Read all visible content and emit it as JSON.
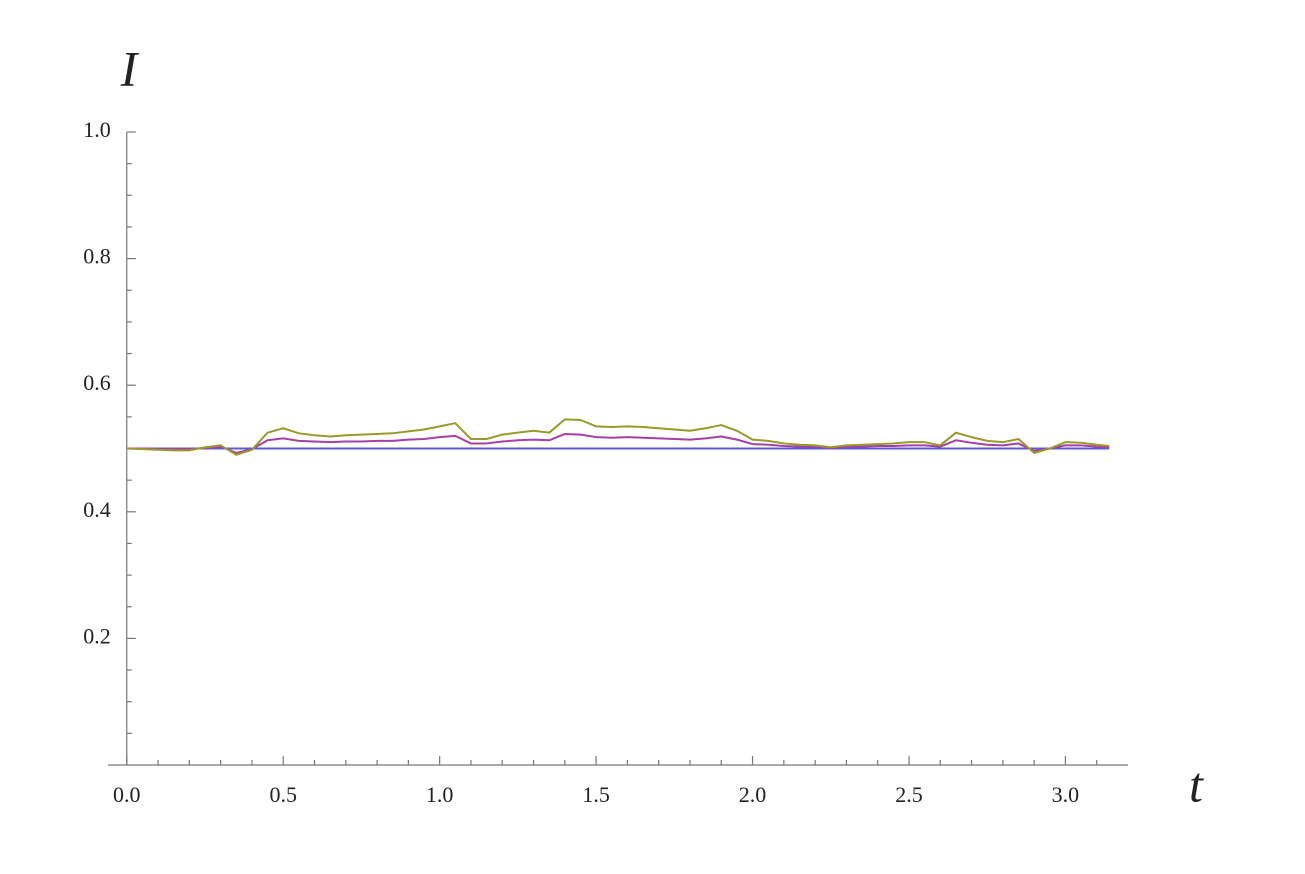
{
  "chart_data": {
    "type": "line",
    "xlabel": "t",
    "ylabel": "I",
    "x": [
      0,
      0.05,
      0.1,
      0.15,
      0.2,
      0.25,
      0.3,
      0.35,
      0.4,
      0.45,
      0.5,
      0.55,
      0.6,
      0.65,
      0.7,
      0.75,
      0.8,
      0.85,
      0.9,
      0.95,
      1.0,
      1.05,
      1.1,
      1.15,
      1.2,
      1.25,
      1.3,
      1.35,
      1.4,
      1.45,
      1.5,
      1.55,
      1.6,
      1.65,
      1.7,
      1.75,
      1.8,
      1.85,
      1.9,
      1.95,
      2.0,
      2.05,
      2.1,
      2.15,
      2.2,
      2.25,
      2.3,
      2.35,
      2.4,
      2.45,
      2.5,
      2.55,
      2.6,
      2.65,
      2.7,
      2.75,
      2.8,
      2.85,
      2.9,
      2.95,
      3.0,
      3.05,
      3.1,
      3.14
    ],
    "series": [
      {
        "color": "#5b5bd6",
        "values": [
          0.5,
          0.5,
          0.5,
          0.5,
          0.5,
          0.5,
          0.5,
          0.5,
          0.5,
          0.5,
          0.5,
          0.5,
          0.5,
          0.5,
          0.5,
          0.5,
          0.5,
          0.5,
          0.5,
          0.5,
          0.5,
          0.5,
          0.5,
          0.5,
          0.5,
          0.5,
          0.5,
          0.5,
          0.5,
          0.5,
          0.5,
          0.5,
          0.5,
          0.5,
          0.5,
          0.5,
          0.5,
          0.5,
          0.5,
          0.5,
          0.5,
          0.5,
          0.5,
          0.5,
          0.5,
          0.5,
          0.5,
          0.5,
          0.5,
          0.5,
          0.5,
          0.5,
          0.5,
          0.5,
          0.5,
          0.5,
          0.5,
          0.5,
          0.5,
          0.5,
          0.5,
          0.5,
          0.5,
          0.5
        ]
      },
      {
        "color": "#a83ea8",
        "values": [
          0.5,
          0.5,
          0.499,
          0.499,
          0.499,
          0.501,
          0.503,
          0.493,
          0.499,
          0.513,
          0.516,
          0.512,
          0.511,
          0.51,
          0.511,
          0.511,
          0.512,
          0.512,
          0.514,
          0.515,
          0.518,
          0.52,
          0.508,
          0.508,
          0.511,
          0.513,
          0.514,
          0.513,
          0.523,
          0.522,
          0.518,
          0.517,
          0.518,
          0.517,
          0.516,
          0.515,
          0.514,
          0.516,
          0.519,
          0.514,
          0.507,
          0.506,
          0.504,
          0.503,
          0.503,
          0.501,
          0.503,
          0.503,
          0.504,
          0.504,
          0.505,
          0.505,
          0.503,
          0.513,
          0.509,
          0.506,
          0.505,
          0.508,
          0.496,
          0.5,
          0.505,
          0.505,
          0.503,
          0.502
        ]
      },
      {
        "color": "#9a9a2a",
        "values": [
          0.5,
          0.499,
          0.498,
          0.497,
          0.497,
          0.502,
          0.505,
          0.49,
          0.498,
          0.525,
          0.532,
          0.524,
          0.521,
          0.519,
          0.521,
          0.522,
          0.523,
          0.524,
          0.527,
          0.53,
          0.535,
          0.54,
          0.515,
          0.515,
          0.522,
          0.525,
          0.528,
          0.525,
          0.546,
          0.545,
          0.535,
          0.534,
          0.535,
          0.534,
          0.532,
          0.53,
          0.528,
          0.532,
          0.537,
          0.528,
          0.514,
          0.512,
          0.508,
          0.506,
          0.505,
          0.502,
          0.505,
          0.506,
          0.507,
          0.508,
          0.51,
          0.51,
          0.505,
          0.525,
          0.518,
          0.512,
          0.51,
          0.515,
          0.493,
          0.5,
          0.51,
          0.509,
          0.506,
          0.504
        ]
      }
    ],
    "xlim": [
      -0.06,
      3.2
    ],
    "ylim": [
      0,
      1.0
    ],
    "xticks": [
      {
        "value": 0,
        "label": "0.0"
      },
      0.5,
      {
        "value": 1,
        "label": "1.0"
      },
      1.5,
      {
        "value": 2,
        "label": "2.0"
      },
      2.5,
      {
        "value": 3,
        "label": "3.0"
      }
    ],
    "yticks": [
      0.2,
      0.4,
      0.6,
      0.8,
      {
        "value": 1,
        "label": "1.0"
      }
    ],
    "xminorticks": [
      0.1,
      0.2,
      0.3,
      0.4,
      0.6,
      0.7,
      0.8,
      0.9,
      1.1,
      1.2,
      1.3,
      1.4,
      1.6,
      1.7,
      1.8,
      1.9,
      2.1,
      2.2,
      2.3,
      2.4,
      2.6,
      2.7,
      2.8,
      2.9,
      3.1
    ],
    "yminorticks": [
      0.05,
      0.1,
      0.15,
      0.25,
      0.3,
      0.35,
      0.45,
      0.5,
      0.55,
      0.65,
      0.7,
      0.75,
      0.85,
      0.9,
      0.95
    ]
  }
}
